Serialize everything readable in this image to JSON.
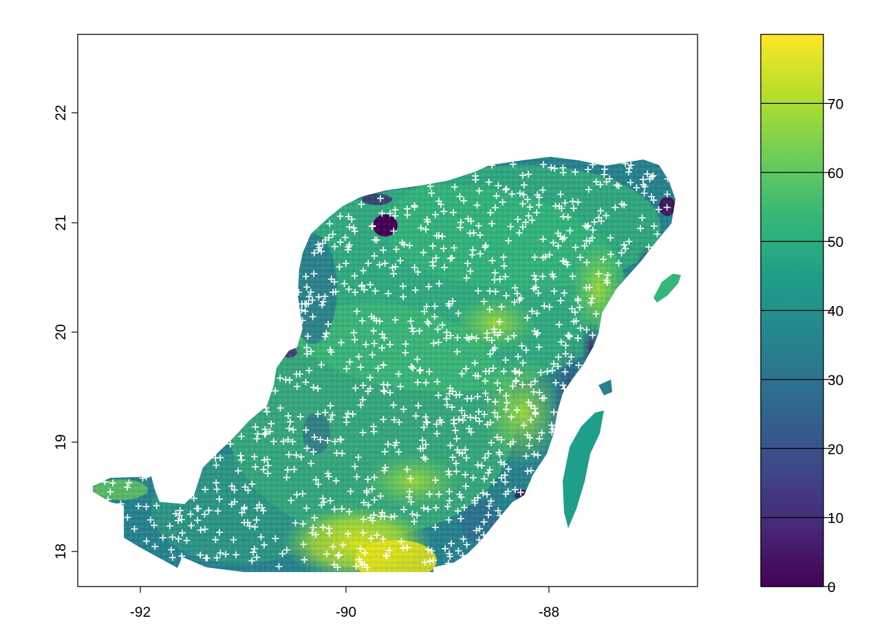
{
  "map": {
    "x_axis": {
      "ticks": [
        "-92",
        "-90",
        "-88"
      ],
      "values": [
        -92,
        -90,
        -88
      ],
      "range": [
        -92.6,
        -86.6
      ]
    },
    "y_axis": {
      "ticks": [
        "18",
        "19",
        "20",
        "21",
        "22"
      ],
      "values": [
        18,
        19,
        20,
        21,
        22
      ],
      "range": [
        17.7,
        22.7
      ]
    },
    "region": "Yucatan Peninsula",
    "point_marker": "white-plus",
    "colors": {
      "frame": "#000000",
      "points": "#ffffff",
      "background": "#ffffff"
    }
  },
  "legend": {
    "ticks": [
      "0",
      "10",
      "20",
      "30",
      "40",
      "50",
      "60",
      "70"
    ],
    "values": [
      0,
      10,
      20,
      30,
      40,
      50,
      60,
      70
    ],
    "range": [
      0,
      80
    ],
    "palette": "viridis",
    "colors": [
      "#440154",
      "#482878",
      "#3e4989",
      "#31688e",
      "#26828e",
      "#1f9e89",
      "#35b779",
      "#6ece58",
      "#b5de2b",
      "#fde725"
    ]
  }
}
